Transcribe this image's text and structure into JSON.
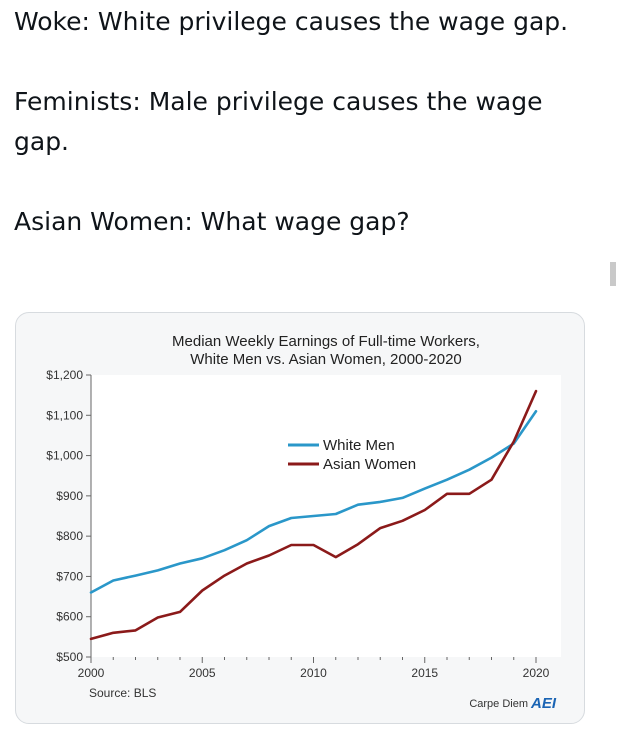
{
  "post": {
    "lines": [
      "Woke: White privilege causes the wage gap.",
      "Feminists: Male privilege causes the wage gap.",
      "Asian Women: What wage gap?"
    ]
  },
  "colors": {
    "white_men": "#2a97c9",
    "asian_women": "#8b1a1a",
    "plot_bg": "#ffffff",
    "card_bg": "#f6f7f8",
    "brand": "#1a64b4"
  },
  "chart_data": {
    "type": "line",
    "title": "Median Weekly Earnings of Full-time Workers,",
    "subtitle": "White Men vs. Asian Women, 2000-2020",
    "xlabel": "",
    "ylabel": "",
    "xlim": [
      2000,
      2020
    ],
    "ylim": [
      500,
      1200
    ],
    "x_ticks": [
      2000,
      2005,
      2010,
      2015,
      2020
    ],
    "y_ticks": [
      500,
      600,
      700,
      800,
      900,
      1000,
      1100,
      1200
    ],
    "y_tick_labels": [
      "$500",
      "$600",
      "$700",
      "$800",
      "$900",
      "$1,000",
      "$1,100",
      "$1,200"
    ],
    "x": [
      2000,
      2001,
      2002,
      2003,
      2004,
      2005,
      2006,
      2007,
      2008,
      2009,
      2010,
      2011,
      2012,
      2013,
      2014,
      2015,
      2016,
      2017,
      2018,
      2019,
      2020
    ],
    "series": [
      {
        "name": "White Men",
        "color_key": "white_men",
        "values": [
          660,
          690,
          702,
          715,
          732,
          745,
          765,
          790,
          825,
          845,
          850,
          855,
          878,
          885,
          895,
          918,
          940,
          965,
          995,
          1030,
          1110
        ]
      },
      {
        "name": "Asian Women",
        "color_key": "asian_women",
        "values": [
          545,
          560,
          566,
          598,
          612,
          665,
          702,
          732,
          752,
          778,
          778,
          748,
          780,
          820,
          838,
          865,
          905,
          905,
          940,
          1035,
          1160
        ]
      }
    ],
    "legend_position": "center-right",
    "grid": false,
    "source": "Source: BLS",
    "branding": {
      "text": "Carpe Diem",
      "logo": "AEI"
    }
  }
}
